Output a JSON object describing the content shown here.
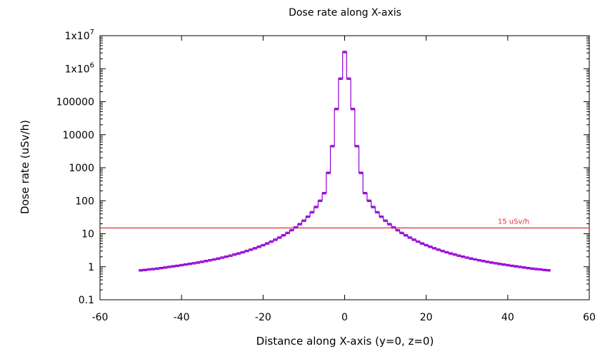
{
  "chart_data": {
    "type": "line",
    "style": "histogram-steps-with-errorbars",
    "title": "Dose rate along X-axis",
    "xlabel": "Distance along X-axis (y=0, z=0)",
    "ylabel": "Dose rate (uSv/h)",
    "xlim": [
      -60,
      60
    ],
    "ylim": [
      0.1,
      10000000
    ],
    "yscale": "log",
    "grid": false,
    "x_ticks": [
      {
        "value": -60,
        "label": "-60"
      },
      {
        "value": -40,
        "label": "-40"
      },
      {
        "value": -20,
        "label": "-20"
      },
      {
        "value": 0,
        "label": "0"
      },
      {
        "value": 20,
        "label": "20"
      },
      {
        "value": 40,
        "label": "40"
      },
      {
        "value": 60,
        "label": "60"
      }
    ],
    "y_ticks": [
      {
        "value": 0.1,
        "label": "0.1"
      },
      {
        "value": 1,
        "label": "1"
      },
      {
        "value": 10,
        "label": "10"
      },
      {
        "value": 100,
        "label": "100"
      },
      {
        "value": 1000,
        "label": "1000"
      },
      {
        "value": 10000,
        "label": "10000"
      },
      {
        "value": 100000,
        "label": "100000"
      },
      {
        "value": 1000000,
        "label": "1x10",
        "exp": "6"
      },
      {
        "value": 10000000,
        "label": "1x10",
        "exp": "7"
      }
    ],
    "series": [
      {
        "color": "#9400d3",
        "bin_width": 1,
        "bin_centers": [
          -50,
          -49,
          -48,
          -47,
          -46,
          -45,
          -44,
          -43,
          -42,
          -41,
          -40,
          -39,
          -38,
          -37,
          -36,
          -35,
          -34,
          -33,
          -32,
          -31,
          -30,
          -29,
          -28,
          -27,
          -26,
          -25,
          -24,
          -23,
          -22,
          -21,
          -20,
          -19,
          -18,
          -17,
          -16,
          -15,
          -14,
          -13,
          -12,
          -11,
          -10,
          -9,
          -8,
          -7,
          -6,
          -5,
          -4,
          -3,
          -2,
          -1,
          0,
          1,
          2,
          3,
          4,
          5,
          6,
          7,
          8,
          9,
          10,
          11,
          12,
          13,
          14,
          15,
          16,
          17,
          18,
          19,
          20,
          21,
          22,
          23,
          24,
          25,
          26,
          27,
          28,
          29,
          30,
          31,
          32,
          33,
          34,
          35,
          36,
          37,
          38,
          39,
          40,
          41,
          42,
          43,
          44,
          45,
          46,
          47,
          48,
          49,
          50
        ],
        "values": [
          0.78,
          0.8,
          0.83,
          0.85,
          0.88,
          0.91,
          0.95,
          0.99,
          1.03,
          1.07,
          1.12,
          1.17,
          1.22,
          1.28,
          1.34,
          1.41,
          1.49,
          1.57,
          1.67,
          1.77,
          1.89,
          2.02,
          2.17,
          2.34,
          2.53,
          2.75,
          3.0,
          3.29,
          3.63,
          4.03,
          4.5,
          5.07,
          5.76,
          6.6,
          7.64,
          8.95,
          10.6,
          12.8,
          15.6,
          19.5,
          24.9,
          32.8,
          44.9,
          64.6,
          100,
          170,
          700,
          4500,
          60000,
          500000,
          3200000,
          500000,
          60000,
          4500,
          700,
          170,
          100,
          64.6,
          44.9,
          32.8,
          24.9,
          19.5,
          15.6,
          12.8,
          10.6,
          8.95,
          7.64,
          6.6,
          5.76,
          5.07,
          4.5,
          4.03,
          3.63,
          3.29,
          3.0,
          2.75,
          2.53,
          2.34,
          2.17,
          2.02,
          1.89,
          1.77,
          1.67,
          1.57,
          1.49,
          1.41,
          1.34,
          1.28,
          1.22,
          1.17,
          1.12,
          1.07,
          1.03,
          0.99,
          0.95,
          0.91,
          0.88,
          0.85,
          0.83,
          0.8,
          0.78
        ],
        "rel_error": 0.06
      }
    ],
    "reference_lines": [
      {
        "y": 15,
        "label": "15 uSv/h",
        "color": "#e0303a"
      }
    ]
  }
}
